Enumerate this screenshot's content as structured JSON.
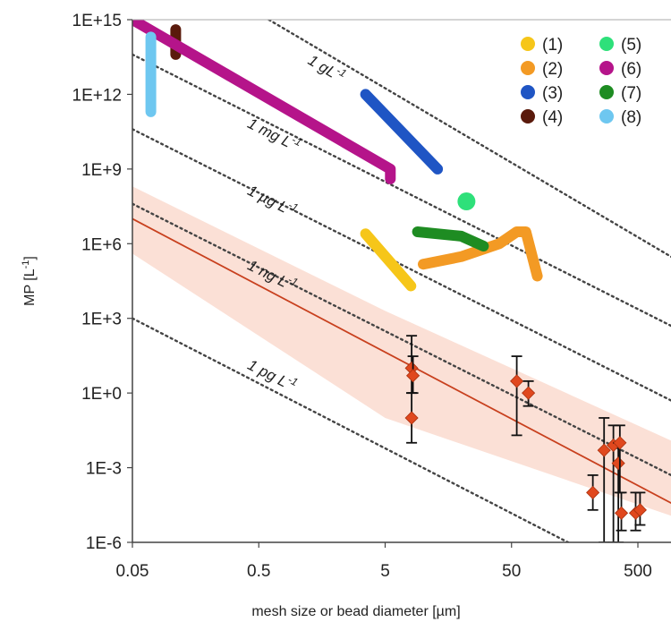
{
  "chart_data": {
    "type": "scatter",
    "title": "",
    "xlabel": "mesh size or bead diameter [µm]",
    "ylabel": "MP [L",
    "ylabel_sup": "-1",
    "ylabel_close": "]",
    "x_scale": "log",
    "y_scale": "log",
    "xlim": [
      0.05,
      1000
    ],
    "ylim": [
      1e-06,
      1000000000000000.0
    ],
    "x_ticks": [
      {
        "value": 0.05,
        "label": "0.05"
      },
      {
        "value": 0.5,
        "label": "0.5"
      },
      {
        "value": 5,
        "label": "5"
      },
      {
        "value": 50,
        "label": "50"
      },
      {
        "value": 500,
        "label": "500"
      }
    ],
    "y_ticks": [
      {
        "value": 1e-06,
        "label": "1E-6"
      },
      {
        "value": 0.001,
        "label": "1E-3"
      },
      {
        "value": 1,
        "label": "1E+0"
      },
      {
        "value": 1000.0,
        "label": "1E+3"
      },
      {
        "value": 1000000.0,
        "label": "1E+6"
      },
      {
        "value": 1000000000.0,
        "label": "1E+9"
      },
      {
        "value": 1000000000000.0,
        "label": "1E+12"
      },
      {
        "value": 1000000000000000.0,
        "label": "1E+15"
      }
    ],
    "grid": false,
    "legend": "top-right",
    "iso_lines": [
      {
        "label": "1 gL",
        "sup": "-1",
        "p1": [
          0.6,
          1000000000000000.0
        ],
        "p2": [
          1000,
          230000.0
        ],
        "label_at": [
          1.2,
          18000000000000.0
        ]
      },
      {
        "label": "1 mg L",
        "sup": "-1",
        "p1": [
          0.05,
          40000000000000.0
        ],
        "p2": [
          1000,
          400.0
        ],
        "label_at": [
          0.4,
          50000000000.0
        ]
      },
      {
        "label": "1 µg L",
        "sup": "-1",
        "p1": [
          0.05,
          40000000000.0
        ],
        "p2": [
          1000,
          0.4
        ],
        "label_at": [
          0.4,
          100000000.0
        ]
      },
      {
        "label": "1 ng L",
        "sup": "-1",
        "p1": [
          0.05,
          40000000.0
        ],
        "p2": [
          1000,
          0.0004
        ],
        "label_at": [
          0.4,
          100000.0
        ]
      },
      {
        "label": "1 pg L",
        "sup": "-1",
        "p1": [
          0.05,
          1000.0
        ],
        "p2": [
          140,
          1e-06
        ],
        "label_at": [
          0.4,
          10.0
        ]
      }
    ],
    "band": {
      "color": "#f9d5c8",
      "upper": [
        [
          0.05,
          200000000.0
        ],
        [
          5,
          2000.0
        ],
        [
          1000,
          0.01
        ]
      ],
      "lower": [
        [
          0.05,
          400000.0
        ],
        [
          5,
          0.1
        ],
        [
          1000,
          1e-05
        ]
      ]
    },
    "fit_line": {
      "color": "#c8401e",
      "p1": [
        0.05,
        10000000.0
      ],
      "p2": [
        1000,
        3e-05
      ]
    },
    "series": [
      {
        "name": "(1)",
        "color": "#f6c619",
        "points": [
          [
            3.5,
            2500000.0
          ],
          [
            8,
            20000.0
          ]
        ],
        "width": 12
      },
      {
        "name": "(2)",
        "color": "#f39a24",
        "points": [
          [
            10,
            150000.0
          ],
          [
            20,
            300000.0
          ],
          [
            40,
            1000000.0
          ],
          [
            55,
            3000000.0
          ],
          [
            65,
            3000000.0
          ],
          [
            80,
            50000.0
          ]
        ],
        "width": 12
      },
      {
        "name": "(3)",
        "color": "#1f55c4",
        "points": [
          [
            3.5,
            1000000000000.0
          ],
          [
            13,
            1000000000.0
          ]
        ],
        "width": 12
      },
      {
        "name": "(4)",
        "color": "#5a1a0c",
        "points": [
          [
            0.11,
            40000000000000.0
          ],
          [
            0.11,
            400000000000000.0
          ]
        ],
        "width": 12
      },
      {
        "name": "(5)",
        "color": "#2ee07a",
        "points": [
          [
            22,
            50000000.0
          ]
        ],
        "width": 0,
        "marker_r": 10
      },
      {
        "name": "(6)",
        "color": "#b5148a",
        "points": [
          [
            0.05,
            1000000000000000.0
          ],
          [
            5.5,
            1000000000.0
          ],
          [
            5.5,
            400000000.0
          ]
        ],
        "width": 12
      },
      {
        "name": "(7)",
        "color": "#1e8c22",
        "points": [
          [
            9,
            3000000.0
          ],
          [
            20,
            2000000.0
          ],
          [
            30,
            800000.0
          ]
        ],
        "width": 12
      },
      {
        "name": "(8)",
        "color": "#6ec7f0",
        "points": [
          [
            0.07,
            200000000000000.0
          ],
          [
            0.07,
            200000000000.0
          ]
        ],
        "width": 12
      }
    ],
    "measurements": [
      {
        "x": 8.1,
        "y": 10,
        "lo": 1,
        "hi": 200.0
      },
      {
        "x": 8.3,
        "y": 5,
        "lo": 1,
        "hi": 30.0
      },
      {
        "x": 8.1,
        "y": 0.1,
        "lo": 0.01,
        "hi": 1
      },
      {
        "x": 55,
        "y": 3,
        "lo": 0.02,
        "hi": 30
      },
      {
        "x": 68,
        "y": 1,
        "lo": 0.3,
        "hi": 3
      },
      {
        "x": 220,
        "y": 0.0001,
        "lo": 2e-05,
        "hi": 0.0005
      },
      {
        "x": 270,
        "y": 0.005,
        "lo": 1e-06,
        "hi": 0.1
      },
      {
        "x": 320,
        "y": 0.008,
        "lo": 1e-06,
        "hi": 0.05
      },
      {
        "x": 350,
        "y": 0.0015,
        "lo": 1e-06,
        "hi": 0.01
      },
      {
        "x": 360,
        "y": 0.01,
        "lo": 0.0001,
        "hi": 0.05
      },
      {
        "x": 370,
        "y": 1.5e-05,
        "lo": 3e-06,
        "hi": 0.0001
      },
      {
        "x": 480,
        "y": 1.5e-05,
        "lo": 3e-06,
        "hi": 0.0001
      },
      {
        "x": 520,
        "y": 2e-05,
        "lo": 5e-06,
        "hi": 0.0001
      }
    ],
    "marker_color": "#e0481e"
  }
}
